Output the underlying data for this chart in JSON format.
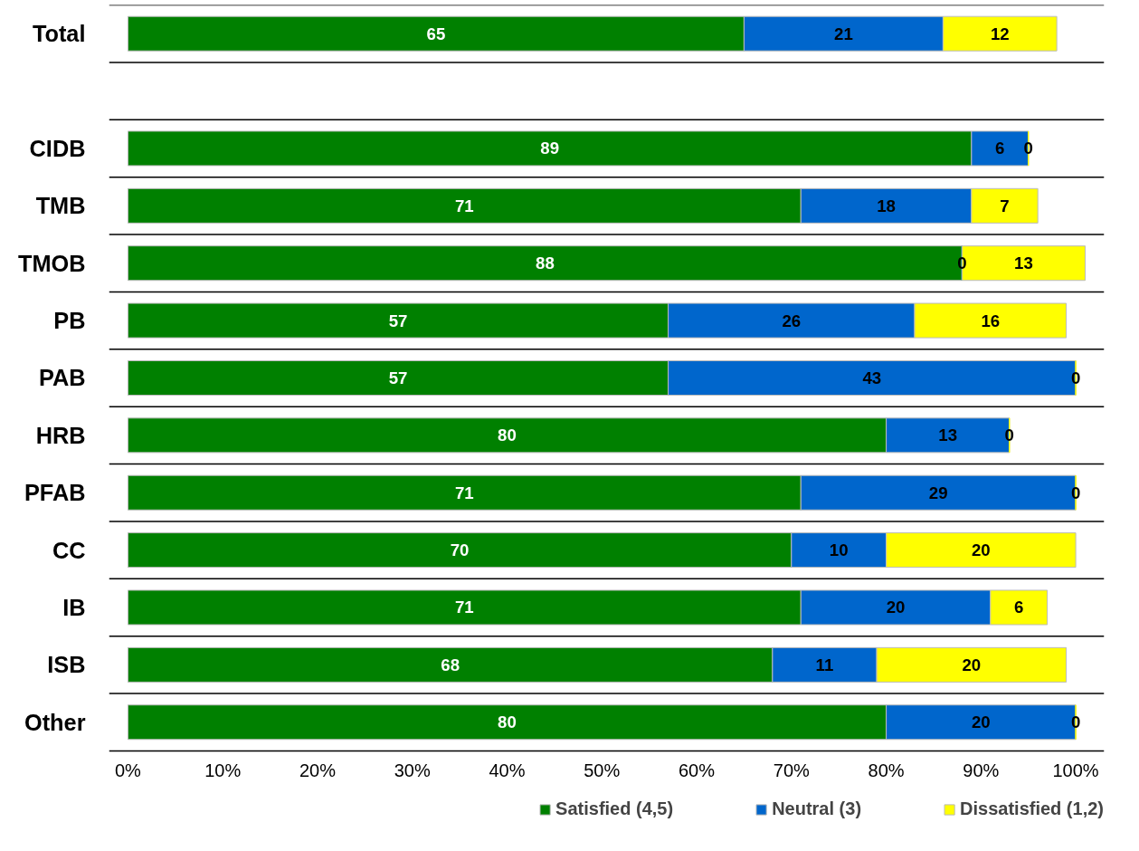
{
  "chart_data": {
    "type": "bar",
    "orientation": "horizontal",
    "stacked": true,
    "data_labels": true,
    "grid": "y",
    "legend": "bottom right",
    "categories": [
      "Total",
      null,
      "CIDB",
      "TMB",
      "TMOB",
      "PB",
      "PAB",
      "HRB",
      "PFAB",
      "CC",
      "IB",
      "ISB",
      "Other"
    ],
    "series": [
      {
        "name": "Satisfied (4,5)",
        "color": "#008000",
        "values": [
          65,
          null,
          89,
          71,
          88,
          57,
          57,
          80,
          71,
          70,
          71,
          68,
          80
        ]
      },
      {
        "name": "Neutral (3)",
        "color": "#0066cc",
        "values": [
          21,
          null,
          6,
          18,
          0,
          26,
          43,
          13,
          29,
          10,
          20,
          11,
          20
        ]
      },
      {
        "name": "Dissatisfied (1,2)",
        "color": "#ffff00",
        "values": [
          12,
          null,
          0,
          7,
          13,
          16,
          0,
          0,
          0,
          20,
          6,
          20,
          0
        ]
      }
    ],
    "xlim": [
      -2,
      103
    ],
    "xticks": [
      {
        "value": 0,
        "label": "0%"
      },
      {
        "value": 10,
        "label": "10%"
      },
      {
        "value": 20,
        "label": "20%"
      },
      {
        "value": 30,
        "label": "30%"
      },
      {
        "value": 40,
        "label": "40%"
      },
      {
        "value": 50,
        "label": "50%"
      },
      {
        "value": 60,
        "label": "60%"
      },
      {
        "value": 70,
        "label": "70%"
      },
      {
        "value": 80,
        "label": "80%"
      },
      {
        "value": 90,
        "label": "90%"
      },
      {
        "value": 100,
        "label": "100%"
      }
    ]
  }
}
